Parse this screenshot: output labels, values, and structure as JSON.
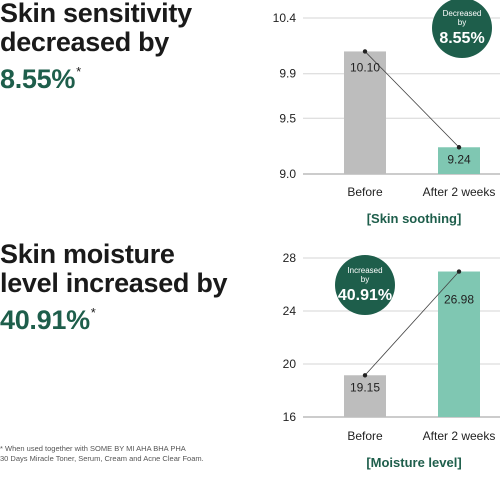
{
  "headings": [
    {
      "line1": "Skin sensitivity",
      "line2": "decreased by",
      "accent": "8.55%",
      "mark": "*"
    },
    {
      "line1": "Skin moisture",
      "line2": "level increased by",
      "accent": "40.91%",
      "mark": "*"
    }
  ],
  "footnote": {
    "line1": "* When used together with SOME BY MI AHA BHA PHA",
    "line2": "30 Days Miracle Toner, Serum, Cream and Acne Clear Foam."
  },
  "colors": {
    "accent": "#1e5e4b",
    "before_bar": "#bdbdbd",
    "after_bar": "#7fc7b2",
    "badge": "#1e5e4b"
  },
  "chart_data": [
    {
      "type": "bar",
      "caption": "[Skin soothing]",
      "categories": [
        "Before",
        "After 2 weeks"
      ],
      "values": [
        10.1,
        9.24
      ],
      "value_labels": [
        "10.10",
        "9.24"
      ],
      "ylim": [
        9.0,
        10.4
      ],
      "yticks": [
        10.4,
        9.9,
        9.5,
        9.0
      ],
      "ytick_labels": [
        "10.4",
        "9.9",
        "9.5",
        "9.0"
      ],
      "connector_line": true,
      "badge": {
        "line1": "Decreased",
        "line2": "by",
        "value": "8.55%"
      }
    },
    {
      "type": "bar",
      "caption": "[Moisture level]",
      "categories": [
        "Before",
        "After 2 weeks"
      ],
      "values": [
        19.15,
        26.98
      ],
      "value_labels": [
        "19.15",
        "26.98"
      ],
      "ylim": [
        16,
        28
      ],
      "yticks": [
        28,
        24,
        20,
        16
      ],
      "ytick_labels": [
        "28",
        "24",
        "20",
        "16"
      ],
      "connector_line": true,
      "badge": {
        "line1": "Increased",
        "line2": "by",
        "value": "40.91%"
      }
    }
  ]
}
